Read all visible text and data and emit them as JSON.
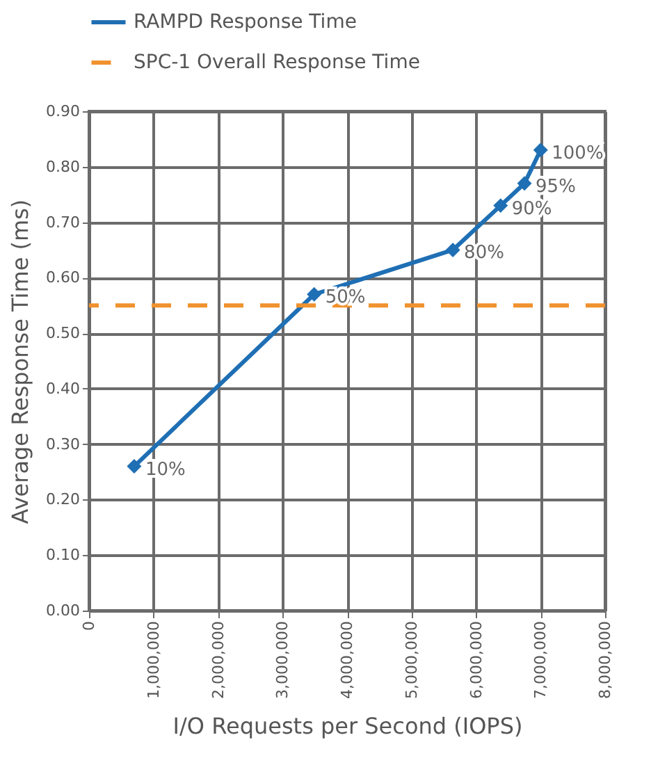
{
  "chart_data": {
    "type": "line",
    "xlabel": "I/O Requests per Second (IOPS)",
    "ylabel": "Average Response Time (ms)",
    "x": [
      700000,
      3490000,
      5640000,
      6380000,
      6750000,
      7000000
    ],
    "series": [
      {
        "name": "RAMPD Response Time",
        "color": "#1f6fb4",
        "values": [
          0.26,
          0.57,
          0.65,
          0.73,
          0.77,
          0.83
        ]
      }
    ],
    "annotations": [
      {
        "text": "10%",
        "x": 700000,
        "y": 0.26
      },
      {
        "text": "50%",
        "x": 3490000,
        "y": 0.57
      },
      {
        "text": "80%",
        "x": 5640000,
        "y": 0.65
      },
      {
        "text": "90%",
        "x": 6380000,
        "y": 0.73
      },
      {
        "text": "95%",
        "x": 6750000,
        "y": 0.77
      },
      {
        "text": "100%",
        "x": 7000000,
        "y": 0.83
      }
    ],
    "ref_lines": [
      {
        "axis": "y",
        "value": 0.55,
        "label": "SPC-1 Overall Response Time",
        "color": "#f0922e",
        "line_style": "dashed"
      }
    ],
    "xlim": [
      0,
      8000000
    ],
    "xticks": [
      {
        "value": 0,
        "label": "0"
      },
      {
        "value": 1000000,
        "label": "1,000,000"
      },
      {
        "value": 2000000,
        "label": "2,000,000"
      },
      {
        "value": 3000000,
        "label": "3,000,000"
      },
      {
        "value": 4000000,
        "label": "4,000,000"
      },
      {
        "value": 5000000,
        "label": "5,000,000"
      },
      {
        "value": 6000000,
        "label": "6,000,000"
      },
      {
        "value": 7000000,
        "label": "7,000,000"
      },
      {
        "value": 8000000,
        "label": "8,000,000"
      }
    ],
    "ylim": [
      0,
      0.9
    ],
    "yticks": [
      {
        "value": 0,
        "label": "0.00"
      },
      {
        "value": 0.1,
        "label": "0.10"
      },
      {
        "value": 0.2,
        "label": "0.20"
      },
      {
        "value": 0.3,
        "label": "0.30"
      },
      {
        "value": 0.4,
        "label": "0.40"
      },
      {
        "value": 0.5,
        "label": "0.50"
      },
      {
        "value": 0.6,
        "label": "0.60"
      },
      {
        "value": 0.7,
        "label": "0.70"
      },
      {
        "value": 0.8,
        "label": "0.80"
      },
      {
        "value": 0.9,
        "label": "0.90"
      }
    ],
    "grid": true,
    "legend": "top",
    "marker": "diamond",
    "line_style": "solid"
  }
}
